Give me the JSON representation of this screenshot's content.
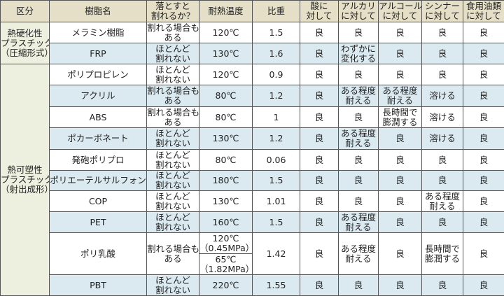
{
  "headers": [
    [
      "区分"
    ],
    [
      "樹脂名"
    ],
    [
      "落とすと",
      "割れるか？"
    ],
    [
      "耐熱温度"
    ],
    [
      "比重"
    ],
    [
      "酸に",
      "対して"
    ],
    [
      "アルカリ",
      "に対して"
    ],
    [
      "アルコール",
      "に対して"
    ],
    [
      "シンナー",
      "に対して"
    ],
    [
      "食用油類",
      "に対して"
    ]
  ],
  "categories": [
    {
      "label": [
        "熱硬化性",
        "プラスチック",
        "（圧縮形式）"
      ],
      "rows": 2
    },
    {
      "label": [
        "熱可塑性",
        "プラスチック",
        "（射出成形）"
      ],
      "rows": 10
    }
  ],
  "rows": [
    {
      "name": "メラミン樹脂",
      "drop": [
        "割れる場合も",
        "ある"
      ],
      "heat": [
        [
          "120℃"
        ]
      ],
      "gravity": "1.5",
      "acid": [
        "良"
      ],
      "alkali": [
        "良"
      ],
      "alcohol": [
        "良"
      ],
      "thinner": [
        "良"
      ],
      "oil": [
        "良"
      ]
    },
    {
      "name": "FRP",
      "drop": [
        "ほとんど",
        "割れない"
      ],
      "heat": [
        [
          "130℃"
        ]
      ],
      "gravity": "1.6",
      "acid": [
        "良"
      ],
      "alkali": [
        "わずかに",
        "変化する"
      ],
      "alcohol": [
        "良"
      ],
      "thinner": [
        "良"
      ],
      "oil": [
        "良"
      ]
    },
    {
      "name": "ポリプロピレン",
      "drop": [
        "ほとんど",
        "割れない"
      ],
      "heat": [
        [
          "120℃"
        ]
      ],
      "gravity": "0.9",
      "acid": [
        "良"
      ],
      "alkali": [
        "良"
      ],
      "alcohol": [
        "良"
      ],
      "thinner": [
        "良"
      ],
      "oil": [
        "良"
      ]
    },
    {
      "name": "アクリル",
      "drop": [
        "割れる場合も",
        "ある"
      ],
      "heat": [
        [
          "80℃"
        ]
      ],
      "gravity": "1.2",
      "acid": [
        "良"
      ],
      "alkali": [
        "ある程度",
        "耐える"
      ],
      "alcohol": [
        "ある程度",
        "耐える"
      ],
      "thinner": [
        "溶ける"
      ],
      "oil": [
        "良"
      ]
    },
    {
      "name": "ABS",
      "drop": [
        "割れる場合も",
        "ある"
      ],
      "heat": [
        [
          "80℃"
        ]
      ],
      "gravity": "1",
      "acid": [
        "良"
      ],
      "alkali": [
        "良"
      ],
      "alcohol": [
        "長時間で",
        "膨潤する"
      ],
      "thinner": [
        "溶ける"
      ],
      "oil": [
        "良"
      ]
    },
    {
      "name": "ポカーボネート",
      "drop": [
        "ほとんど",
        "割れない"
      ],
      "heat": [
        [
          "130℃"
        ]
      ],
      "gravity": "1.2",
      "acid": [
        "良"
      ],
      "alkali": [
        "ある程度",
        "耐える"
      ],
      "alcohol": [
        "良"
      ],
      "thinner": [
        "溶ける"
      ],
      "oil": [
        "良"
      ]
    },
    {
      "name": "発砲ポリプロ",
      "drop": [
        "ほとんど",
        "割れない"
      ],
      "heat": [
        [
          "80℃"
        ]
      ],
      "gravity": "0.06",
      "acid": [
        "良"
      ],
      "alkali": [
        "良"
      ],
      "alcohol": [
        "良"
      ],
      "thinner": [
        "良"
      ],
      "oil": [
        "良"
      ]
    },
    {
      "name": "ポリエーテルサルフォン",
      "drop": [
        "ほとんど",
        "割れない"
      ],
      "heat": [
        [
          "180℃"
        ]
      ],
      "gravity": "1.5",
      "acid": [
        "良"
      ],
      "alkali": [
        "良"
      ],
      "alcohol": [
        "良"
      ],
      "thinner": [
        "良"
      ],
      "oil": [
        "良"
      ]
    },
    {
      "name": "COP",
      "drop": [
        "ほとんど",
        "割れない"
      ],
      "heat": [
        [
          "130℃"
        ]
      ],
      "gravity": "1.01",
      "acid": [
        "良"
      ],
      "alkali": [
        "良"
      ],
      "alcohol": [
        "良"
      ],
      "thinner": [
        "ある程度",
        "耐える"
      ],
      "oil": [
        "良"
      ]
    },
    {
      "name": "PET",
      "drop": [
        "ほとんど",
        "割れない"
      ],
      "heat": [
        [
          "160℃"
        ]
      ],
      "gravity": "1.5",
      "acid": [
        "良"
      ],
      "alkali": [
        "ある程度",
        "耐える"
      ],
      "alcohol": [
        "良"
      ],
      "thinner": [
        "良"
      ],
      "oil": [
        "良"
      ]
    },
    {
      "name": "ポリ乳酸",
      "drop": [
        "割れる場合も",
        "ある"
      ],
      "heat": [
        [
          "120℃",
          "（0.45MPa）"
        ],
        [
          "65℃",
          "（1.82MPa）"
        ]
      ],
      "gravity": "1.42",
      "acid": [
        "良"
      ],
      "alkali": [
        "ある程度",
        "耐える"
      ],
      "alcohol": [
        "良"
      ],
      "thinner": [
        "長時間で",
        "膨潤する"
      ],
      "oil": [
        "良"
      ]
    },
    {
      "name": "PBT",
      "drop": [
        "ほとんど",
        "割れない"
      ],
      "heat": [
        [
          "220℃"
        ]
      ],
      "gravity": "1.55",
      "acid": [
        "良"
      ],
      "alkali": [
        "良"
      ],
      "alcohol": [
        "良"
      ],
      "thinner": [
        "良"
      ],
      "oil": [
        "良"
      ]
    }
  ],
  "colors": {
    "header_bg": "#e4dfc6",
    "category_bg": "#eef0df",
    "row_alt_bg": "#daeaf0",
    "border": "#555555"
  }
}
